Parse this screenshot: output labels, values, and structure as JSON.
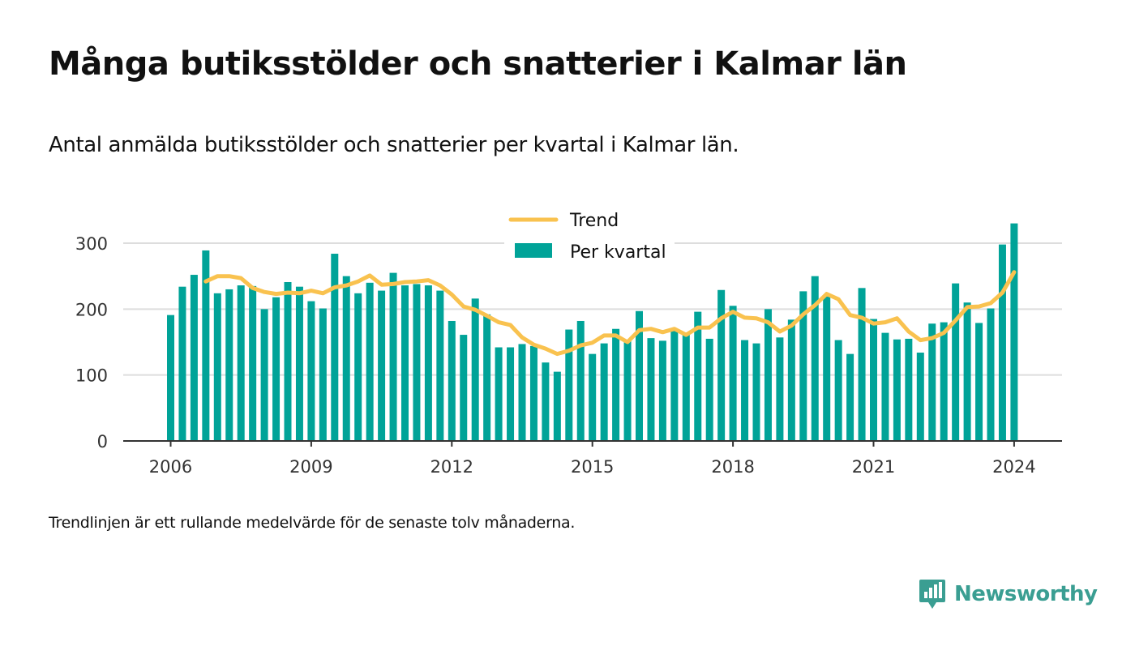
{
  "title": "Många butiksstölder och snatterier i Kalmar län",
  "subtitle": "Antal anmälda butiksstölder och snatterier per kvartal i Kalmar län.",
  "note": "Trendlinjen är ett rullande medelvärde för de senaste tolv månaderna.",
  "brand": {
    "name": "Newsworthy",
    "icon": "newsworthy-logo-icon"
  },
  "colors": {
    "bar": "#00a398",
    "trend": "#f9c24f",
    "grid": "#dddddd",
    "axis": "#333333",
    "brand": "#3a9e92"
  },
  "chart_data": {
    "type": "bar",
    "x_start": "2006 Q1",
    "x_ticks": [
      "2006",
      "2009",
      "2012",
      "2015",
      "2018",
      "2021",
      "2024"
    ],
    "ylim": [
      0,
      350
    ],
    "y_ticks": [
      0,
      100,
      200,
      300
    ],
    "grid": true,
    "legend_position": "top-center",
    "series": [
      {
        "name": "Per kvartal",
        "type": "bar",
        "values": [
          191,
          234,
          252,
          289,
          224,
          230,
          236,
          235,
          200,
          218,
          241,
          234,
          212,
          201,
          284,
          250,
          224,
          240,
          228,
          255,
          236,
          238,
          236,
          228,
          182,
          161,
          216,
          192,
          142,
          142,
          147,
          144,
          119,
          105,
          169,
          182,
          132,
          148,
          170,
          152,
          197,
          156,
          152,
          168,
          163,
          196,
          155,
          229,
          205,
          153,
          148,
          200,
          157,
          184,
          227,
          250,
          221,
          153,
          132,
          232,
          185,
          164,
          154,
          155,
          134,
          178,
          180,
          239,
          210,
          179,
          201,
          298,
          330
        ]
      },
      {
        "name": "Trend",
        "type": "line",
        "values": [
          null,
          null,
          null,
          242,
          250,
          250,
          247,
          232,
          226,
          223,
          225,
          224,
          228,
          224,
          233,
          236,
          242,
          251,
          237,
          238,
          241,
          242,
          244,
          236,
          222,
          204,
          199,
          190,
          180,
          176,
          157,
          146,
          140,
          132,
          137,
          145,
          149,
          160,
          160,
          150,
          168,
          170,
          165,
          170,
          161,
          172,
          172,
          186,
          196,
          187,
          186,
          180,
          166,
          175,
          192,
          206,
          223,
          215,
          191,
          187,
          178,
          180,
          186,
          166,
          153,
          156,
          164,
          183,
          203,
          204,
          209,
          225,
          256
        ]
      }
    ]
  }
}
